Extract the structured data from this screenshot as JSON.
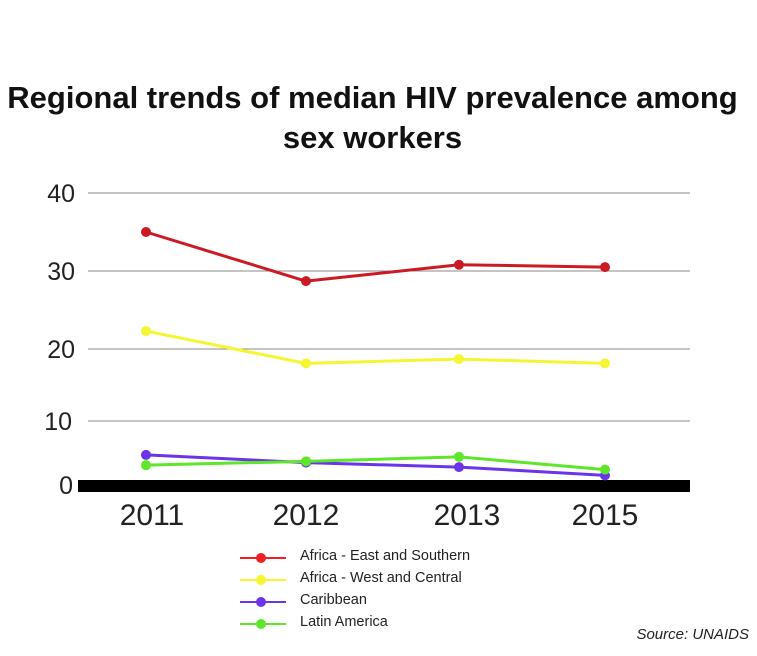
{
  "chart_data": {
    "type": "line",
    "title": "Regional trends of median HIV prevalence among sex workers",
    "categories": [
      "2011",
      "2012",
      "2013",
      "2015"
    ],
    "ylim": [
      0,
      40
    ],
    "yticks": [
      0,
      10,
      20,
      30,
      40
    ],
    "grid": true,
    "legend_position": "bottom",
    "series": [
      {
        "name": "Africa - East and Southern",
        "color": "#cc1a24",
        "legend_color": "#ee2222",
        "values": [
          35,
          28.7,
          30.8,
          30.5
        ]
      },
      {
        "name": "Africa - West and Central",
        "color": "#f5f532",
        "legend_color": "#f5f532",
        "values": [
          22.3,
          18,
          18.6,
          18
        ]
      },
      {
        "name": "Caribbean",
        "color": "#6a35e8",
        "legend_color": "#6a35e8",
        "values": [
          4.7,
          3.5,
          2.8,
          1.5
        ]
      },
      {
        "name": "Latin America",
        "color": "#5ee62a",
        "legend_color": "#5ee62a",
        "values": [
          3.1,
          3.7,
          4.4,
          2.4
        ]
      }
    ]
  },
  "source": "Source: UNAIDS"
}
